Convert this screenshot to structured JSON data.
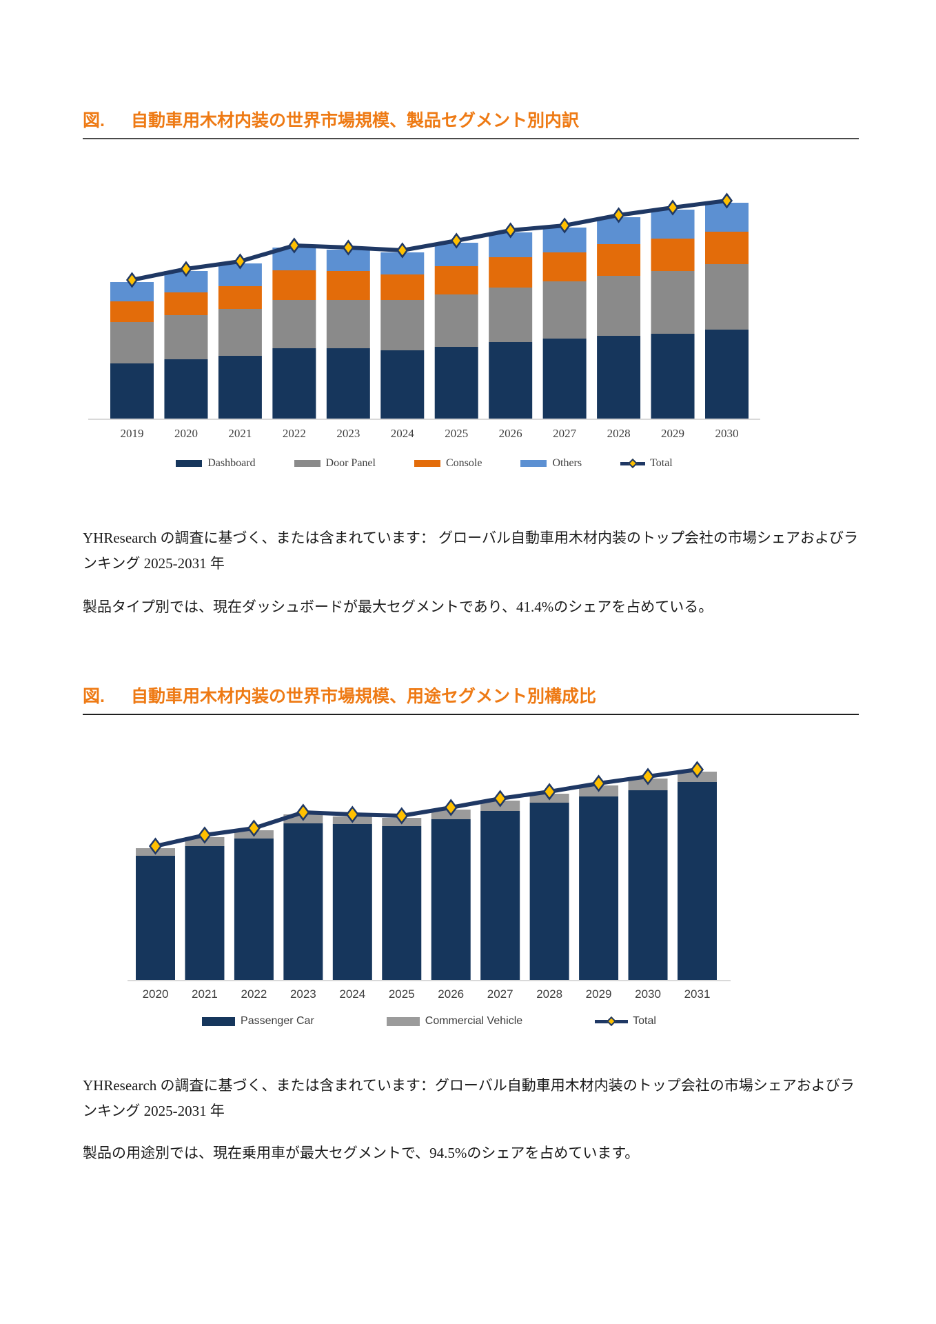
{
  "page": {
    "background": "#FFFFFF"
  },
  "figure1": {
    "caption_prefix": "図.",
    "caption": "自動車用木材内装の世界市場規模、製品セグメント別内訳"
  },
  "figure2": {
    "caption_prefix": "図.",
    "caption": "自動車用木材内装の世界市場規模、用途セグメント別構成比"
  },
  "paragraphs": {
    "p1": "YHResearch の調査に基づく、または含まれています： グローバル自動車用木材内装のトップ会社の市場シェアおよびランキング 2025-2031 年",
    "p2": "製品タイプ別では、現在ダッシュボードが最大セグメントであり、41.4%のシェアを占めている。",
    "p3": "YHResearch の調査に基づく、または含まれています：グローバル自動車用木材内装のトップ会社の市場シェアおよびランキング 2025-2031 年",
    "p4": "製品の用途別では、現在乗用車が最大セグメントで、94.5%のシェアを占めています。"
  },
  "chart_data": [
    {
      "type": "bar",
      "stacked": true,
      "title": "",
      "xlabel": "",
      "ylabel": "",
      "y_axis_visible": false,
      "grid": false,
      "legend_position": "bottom",
      "categories": [
        "2019",
        "2020",
        "2021",
        "2022",
        "2023",
        "2024",
        "2025",
        "2026",
        "2027",
        "2028",
        "2029",
        "2030"
      ],
      "series": [
        {
          "name": "Dashboard",
          "color": "#16365C",
          "values": [
            80,
            86,
            91,
            102,
            102,
            99,
            104,
            111,
            116,
            120,
            123,
            129
          ]
        },
        {
          "name": "Door Panel",
          "color": "#8A8A8A",
          "values": [
            60,
            64,
            68,
            70,
            70,
            73,
            76,
            79,
            83,
            87,
            91,
            95
          ]
        },
        {
          "name": "Console",
          "color": "#E36C0A",
          "values": [
            30,
            33,
            33,
            43,
            42,
            37,
            41,
            44,
            42,
            46,
            47,
            47
          ]
        },
        {
          "name": "Others",
          "color": "#5C90D2",
          "values": [
            28,
            31,
            33,
            33,
            31,
            32,
            34,
            36,
            36,
            39,
            42,
            42
          ]
        }
      ],
      "line_series": {
        "name": "Total",
        "color": "#1F3864",
        "marker": "diamond",
        "marker_fill": "#FFC000",
        "values": [
          198,
          214,
          225,
          248,
          245,
          241,
          255,
          270,
          277,
          292,
          303,
          313
        ]
      }
    },
    {
      "type": "bar",
      "stacked": true,
      "title": "",
      "xlabel": "",
      "ylabel": "",
      "y_axis_visible": false,
      "grid": false,
      "legend_position": "bottom",
      "categories": [
        "2020",
        "2021",
        "2022",
        "2023",
        "2024",
        "2025",
        "2026",
        "2027",
        "2028",
        "2029",
        "2030",
        "2031"
      ],
      "series": [
        {
          "name": "Passenger Car",
          "color": "#16365C",
          "values": [
            180,
            194,
            205,
            227,
            226,
            223,
            233,
            245,
            257,
            266,
            275,
            287
          ]
        },
        {
          "name": "Commercial Vehicle",
          "color": "#9B9B9B",
          "values": [
            11,
            13,
            12,
            13,
            11,
            12,
            14,
            15,
            13,
            16,
            17,
            15
          ]
        }
      ],
      "line_series": {
        "name": "Total",
        "color": "#1F3864",
        "marker": "diamond",
        "marker_fill": "#FFC000",
        "values": [
          191,
          207,
          217,
          240,
          237,
          235,
          247,
          260,
          270,
          282,
          292,
          302
        ]
      }
    }
  ]
}
